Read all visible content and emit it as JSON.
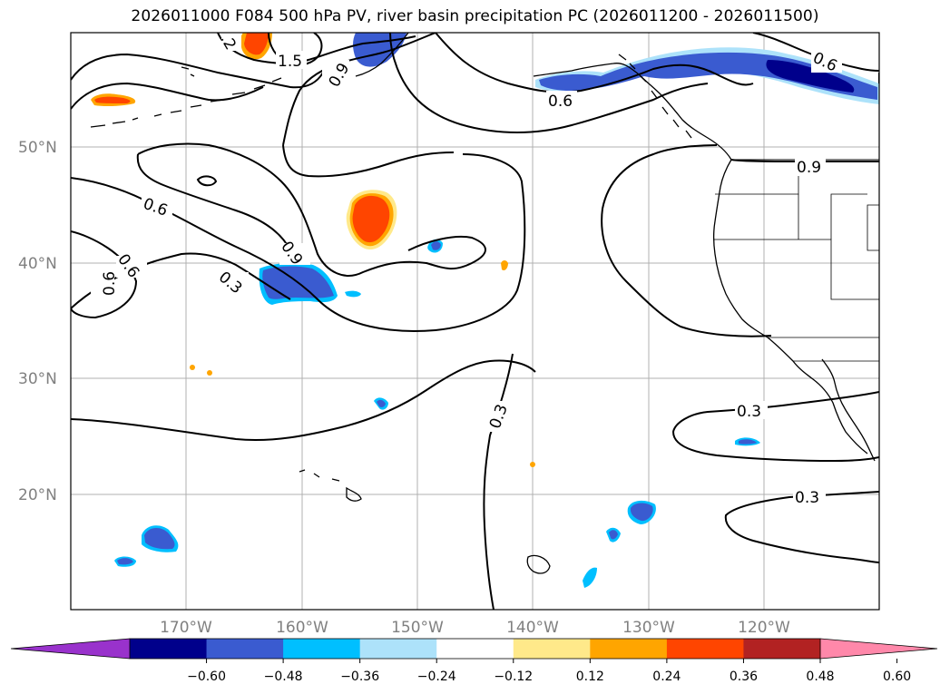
{
  "title": "2026011000 F084 500 hPa PV, river basin precipitation PC (2026011200 - 2026011500)",
  "map": {
    "lat_labels": [
      "50°N",
      "40°N",
      "30°N",
      "20°N"
    ],
    "lon_labels": [
      "170°W",
      "160°W",
      "150°W",
      "140°W",
      "130°W",
      "120°W"
    ],
    "contour_labels": [
      "1.5",
      ".2",
      "0.9",
      "0.6",
      "0.6",
      "0.6",
      "0.3",
      "0.6",
      "0.6",
      "0.9",
      "0.9",
      "0.3",
      "0.3",
      "0.3",
      "0.3"
    ]
  },
  "colorbar": {
    "ticks": [
      "−0.60",
      "−0.48",
      "−0.36",
      "−0.24",
      "−0.12",
      "0.12",
      "0.24",
      "0.36",
      "0.48",
      "0.60"
    ],
    "colors": [
      "#9932CC",
      "#00008B",
      "#3A5BD0",
      "#00BFFF",
      "#ADE2FA",
      "#FFFFFF",
      "#FFE98A",
      "#FFA500",
      "#FF4500",
      "#B22222",
      "#FF88AA"
    ]
  }
}
